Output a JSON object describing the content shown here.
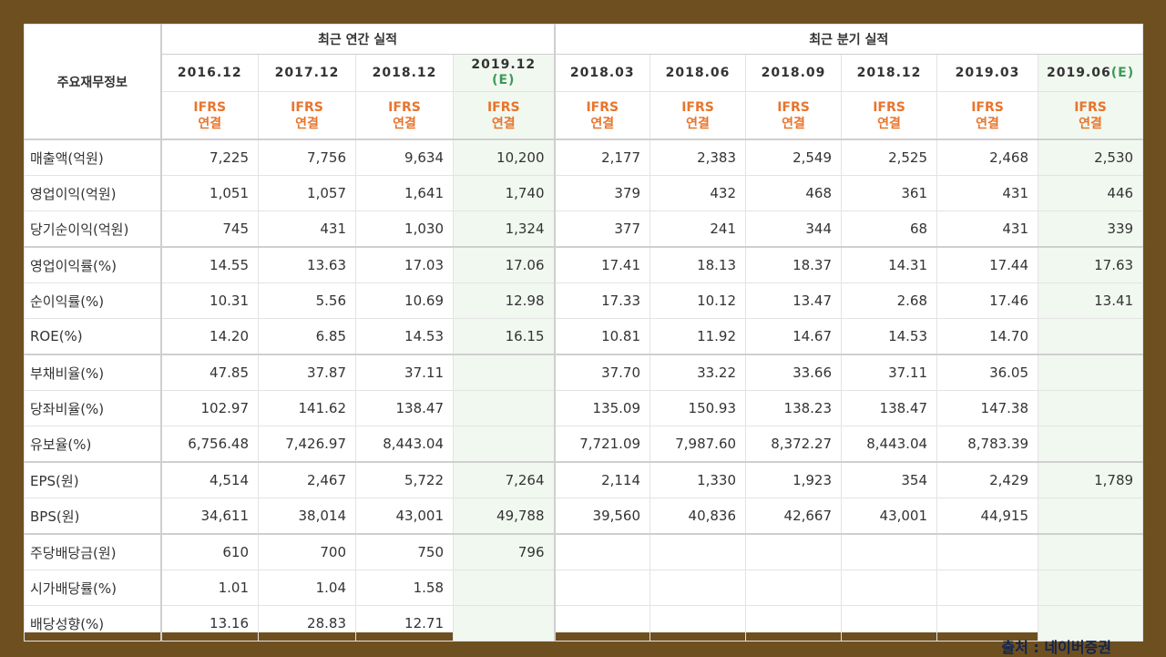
{
  "table": {
    "label_header": "주요재무정보",
    "annual_group": "최근 연간 실적",
    "quarter_group": "최근 분기 실적",
    "ifrs_line1": "IFRS",
    "ifrs_line2": "연결",
    "annual_periods": [
      "2016.12",
      "2017.12",
      "2018.12",
      "2019.12"
    ],
    "annual_estimate_mark": "(E)",
    "quarter_periods": [
      "2018.03",
      "2018.06",
      "2018.09",
      "2018.12",
      "2019.03",
      "2019.06"
    ],
    "quarter_estimate_mark": "(E)",
    "rows": [
      {
        "label": "매출액(억원)",
        "values": [
          "7,225",
          "7,756",
          "9,634",
          "10,200",
          "2,177",
          "2,383",
          "2,549",
          "2,525",
          "2,468",
          "2,530"
        ]
      },
      {
        "label": "영업이익(억원)",
        "values": [
          "1,051",
          "1,057",
          "1,641",
          "1,740",
          "379",
          "432",
          "468",
          "361",
          "431",
          "446"
        ]
      },
      {
        "label": "당기순이익(억원)",
        "values": [
          "745",
          "431",
          "1,030",
          "1,324",
          "377",
          "241",
          "344",
          "68",
          "431",
          "339"
        ]
      },
      {
        "label": "영업이익률(%)",
        "values": [
          "14.55",
          "13.63",
          "17.03",
          "17.06",
          "17.41",
          "18.13",
          "18.37",
          "14.31",
          "17.44",
          "17.63"
        ]
      },
      {
        "label": "순이익률(%)",
        "values": [
          "10.31",
          "5.56",
          "10.69",
          "12.98",
          "17.33",
          "10.12",
          "13.47",
          "2.68",
          "17.46",
          "13.41"
        ]
      },
      {
        "label": "ROE(%)",
        "values": [
          "14.20",
          "6.85",
          "14.53",
          "16.15",
          "10.81",
          "11.92",
          "14.67",
          "14.53",
          "14.70",
          ""
        ]
      },
      {
        "label": "부채비율(%)",
        "values": [
          "47.85",
          "37.87",
          "37.11",
          "",
          "37.70",
          "33.22",
          "33.66",
          "37.11",
          "36.05",
          ""
        ]
      },
      {
        "label": "당좌비율(%)",
        "values": [
          "102.97",
          "141.62",
          "138.47",
          "",
          "135.09",
          "150.93",
          "138.23",
          "138.47",
          "147.38",
          ""
        ]
      },
      {
        "label": "유보율(%)",
        "values": [
          "6,756.48",
          "7,426.97",
          "8,443.04",
          "",
          "7,721.09",
          "7,987.60",
          "8,372.27",
          "8,443.04",
          "8,783.39",
          ""
        ]
      },
      {
        "label": "EPS(원)",
        "values": [
          "4,514",
          "2,467",
          "5,722",
          "7,264",
          "2,114",
          "1,330",
          "1,923",
          "354",
          "2,429",
          "1,789"
        ]
      },
      {
        "label": "BPS(원)",
        "values": [
          "34,611",
          "38,014",
          "43,001",
          "49,788",
          "39,560",
          "40,836",
          "42,667",
          "43,001",
          "44,915",
          ""
        ]
      },
      {
        "label": "주당배당금(원)",
        "values": [
          "610",
          "700",
          "750",
          "796",
          "",
          "",
          "",
          "",
          "",
          ""
        ]
      },
      {
        "label": "시가배당률(%)",
        "values": [
          "1.01",
          "1.04",
          "1.58",
          "",
          "",
          "",
          "",
          "",
          "",
          ""
        ]
      },
      {
        "label": "배당성향(%)",
        "values": [
          "13.16",
          "28.83",
          "12.71",
          "",
          "",
          "",
          "",
          "",
          "",
          ""
        ]
      }
    ]
  },
  "source": "출처 : 네이버증권",
  "colors": {
    "frame": "#6e5020",
    "ifrs_text": "#e8742c",
    "estimate_bg": "#f1f8f0",
    "source_text": "#11244e"
  }
}
